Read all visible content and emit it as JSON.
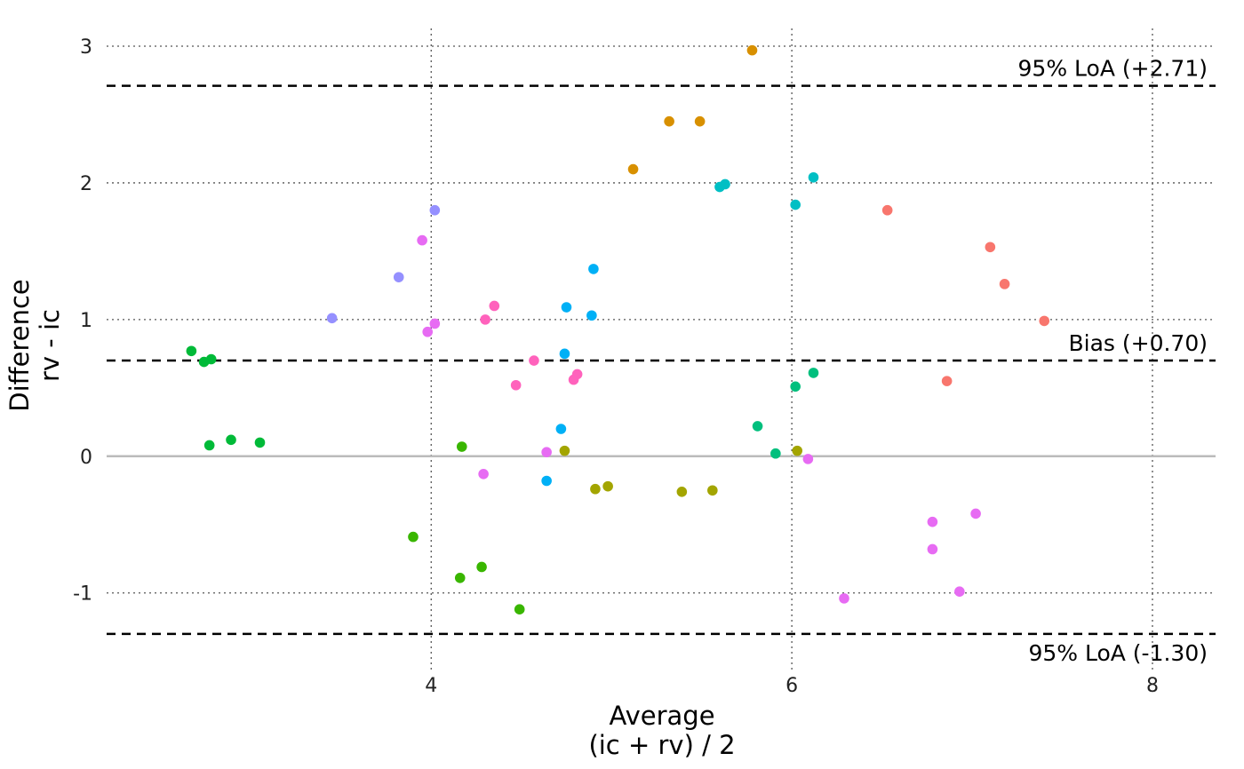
{
  "chart_data": {
    "type": "scatter",
    "title": "",
    "xlabel_lines": [
      "Average",
      "(ic + rv) / 2"
    ],
    "ylabel_lines": [
      "Difference",
      "rv - ic"
    ],
    "xlim": [
      2.2,
      8.35
    ],
    "ylim": [
      -1.58,
      3.13
    ],
    "x_ticks": [
      4,
      6,
      8
    ],
    "y_ticks": [
      -1,
      0,
      1,
      2,
      3
    ],
    "grid": "dotted",
    "zero_line": 0,
    "legend": "none",
    "reference_lines": [
      {
        "y": 2.71,
        "label": "95% LoA (+2.71)"
      },
      {
        "y": 0.7,
        "label": "Bias (+0.70)"
      },
      {
        "y": -1.3,
        "label": "95% LoA (-1.30)"
      }
    ],
    "groups": [
      {
        "color": "#F8766D",
        "points": [
          [
            6.53,
            1.8
          ],
          [
            7.1,
            1.53
          ],
          [
            7.18,
            1.26
          ],
          [
            7.4,
            0.99
          ],
          [
            6.86,
            0.55
          ]
        ]
      },
      {
        "color": "#D89000",
        "points": [
          [
            5.78,
            2.97
          ],
          [
            5.32,
            2.45
          ],
          [
            5.49,
            2.45
          ],
          [
            5.12,
            2.1
          ]
        ]
      },
      {
        "color": "#A3A500",
        "points": [
          [
            4.74,
            0.04
          ],
          [
            4.91,
            -0.24
          ],
          [
            4.98,
            -0.22
          ],
          [
            5.39,
            -0.26
          ],
          [
            5.56,
            -0.25
          ],
          [
            6.03,
            0.04
          ]
        ]
      },
      {
        "color": "#39B600",
        "points": [
          [
            3.9,
            -0.59
          ],
          [
            4.17,
            0.07
          ],
          [
            4.16,
            -0.89
          ],
          [
            4.28,
            -0.81
          ],
          [
            4.49,
            -1.12
          ]
        ]
      },
      {
        "color": "#00BF7D",
        "points": [
          [
            5.81,
            0.22
          ],
          [
            5.91,
            0.02
          ],
          [
            6.02,
            0.51
          ],
          [
            6.12,
            0.61
          ]
        ]
      },
      {
        "color": "#00BFC4",
        "points": [
          [
            5.6,
            1.97
          ],
          [
            5.63,
            1.99
          ],
          [
            6.12,
            2.04
          ],
          [
            6.02,
            1.84
          ]
        ]
      },
      {
        "color": "#00B0F6",
        "points": [
          [
            4.9,
            1.37
          ],
          [
            4.75,
            1.09
          ],
          [
            4.89,
            1.03
          ],
          [
            4.74,
            0.75
          ],
          [
            4.72,
            0.2
          ],
          [
            4.64,
            -0.18
          ]
        ]
      },
      {
        "color": "#9590FF",
        "points": [
          [
            3.45,
            1.01
          ],
          [
            3.82,
            1.31
          ],
          [
            4.02,
            1.8
          ]
        ]
      },
      {
        "color": "#E76BF3",
        "points": [
          [
            3.95,
            1.58
          ],
          [
            4.02,
            0.97
          ],
          [
            3.98,
            0.91
          ],
          [
            4.29,
            -0.13
          ],
          [
            4.64,
            0.03
          ],
          [
            6.09,
            -0.02
          ],
          [
            6.29,
            -1.04
          ],
          [
            6.78,
            -0.48
          ],
          [
            6.78,
            -0.68
          ],
          [
            6.93,
            -0.99
          ],
          [
            7.02,
            -0.42
          ]
        ]
      },
      {
        "color": "#FF62BC",
        "points": [
          [
            4.3,
            1.0
          ],
          [
            4.35,
            1.1
          ],
          [
            4.47,
            0.52
          ],
          [
            4.57,
            0.7
          ],
          [
            4.81,
            0.6
          ],
          [
            4.79,
            0.56
          ]
        ]
      },
      {
        "color": "#00BA38",
        "points": [
          [
            2.67,
            0.77
          ],
          [
            2.74,
            0.69
          ],
          [
            2.78,
            0.71
          ],
          [
            2.77,
            0.08
          ],
          [
            2.89,
            0.12
          ],
          [
            3.05,
            0.1
          ]
        ]
      }
    ]
  }
}
